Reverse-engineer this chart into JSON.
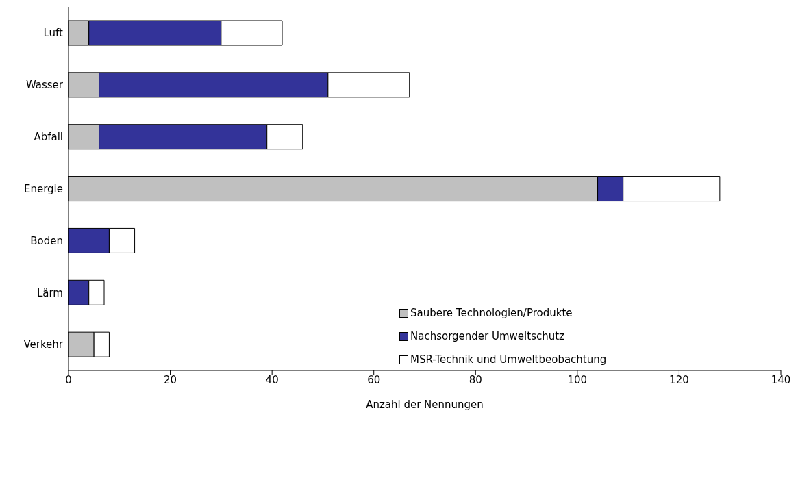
{
  "chart_data": {
    "type": "bar",
    "orientation": "horizontal",
    "stacked": true,
    "xlabel": "Anzahl der Nennungen",
    "categories": [
      "Luft",
      "Wasser",
      "Abfall",
      "Energie",
      "Boden",
      "Lärm",
      "Verkehr"
    ],
    "series": [
      {
        "name": "Saubere Technologien/Produkte",
        "color": "#c0c0c0",
        "values": [
          4,
          6,
          6,
          104,
          0,
          0,
          5
        ]
      },
      {
        "name": "Nachsorgender Umweltschutz",
        "color": "#333399",
        "values": [
          26,
          45,
          33,
          5,
          8,
          4,
          0
        ]
      },
      {
        "name": "MSR-Technik und Umweltbeobachtung",
        "color": "#ffffff",
        "values": [
          12,
          16,
          7,
          19,
          5,
          3,
          3
        ]
      }
    ],
    "xlim": [
      0,
      140
    ],
    "xticks": [
      0,
      20,
      40,
      60,
      80,
      100,
      120,
      140
    ],
    "grid": false,
    "legend": "bottom right"
  }
}
